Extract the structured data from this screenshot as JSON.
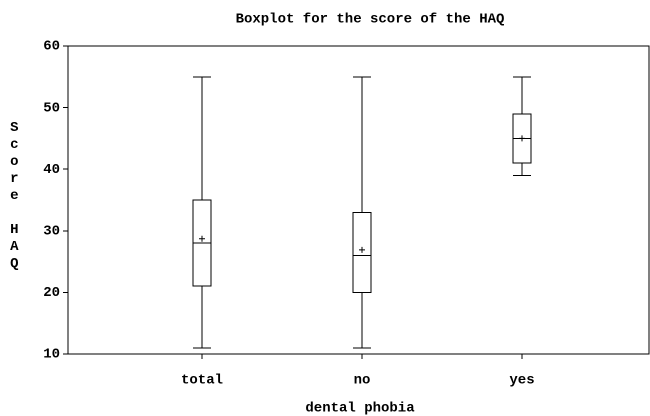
{
  "chart_data": {
    "type": "box",
    "title": "Boxplot for the score of the HAQ",
    "x_label": "dental phobia",
    "y_label": "Score HAQ",
    "categories": [
      "total",
      "no",
      "yes"
    ],
    "boxes": [
      {
        "min": 11,
        "q1": 21,
        "median": 28,
        "q3": 35,
        "max": 55,
        "mean": 28.7
      },
      {
        "min": 11,
        "q1": 20,
        "median": 26,
        "q3": 33,
        "max": 55,
        "mean": 26.9
      },
      {
        "min": 39,
        "q1": 41,
        "median": 45,
        "q3": 49,
        "max": 55,
        "mean": 45
      }
    ],
    "color": "#000000",
    "ylim": [
      10,
      60
    ],
    "yticks": [
      10,
      20,
      30,
      40,
      50,
      60
    ]
  }
}
